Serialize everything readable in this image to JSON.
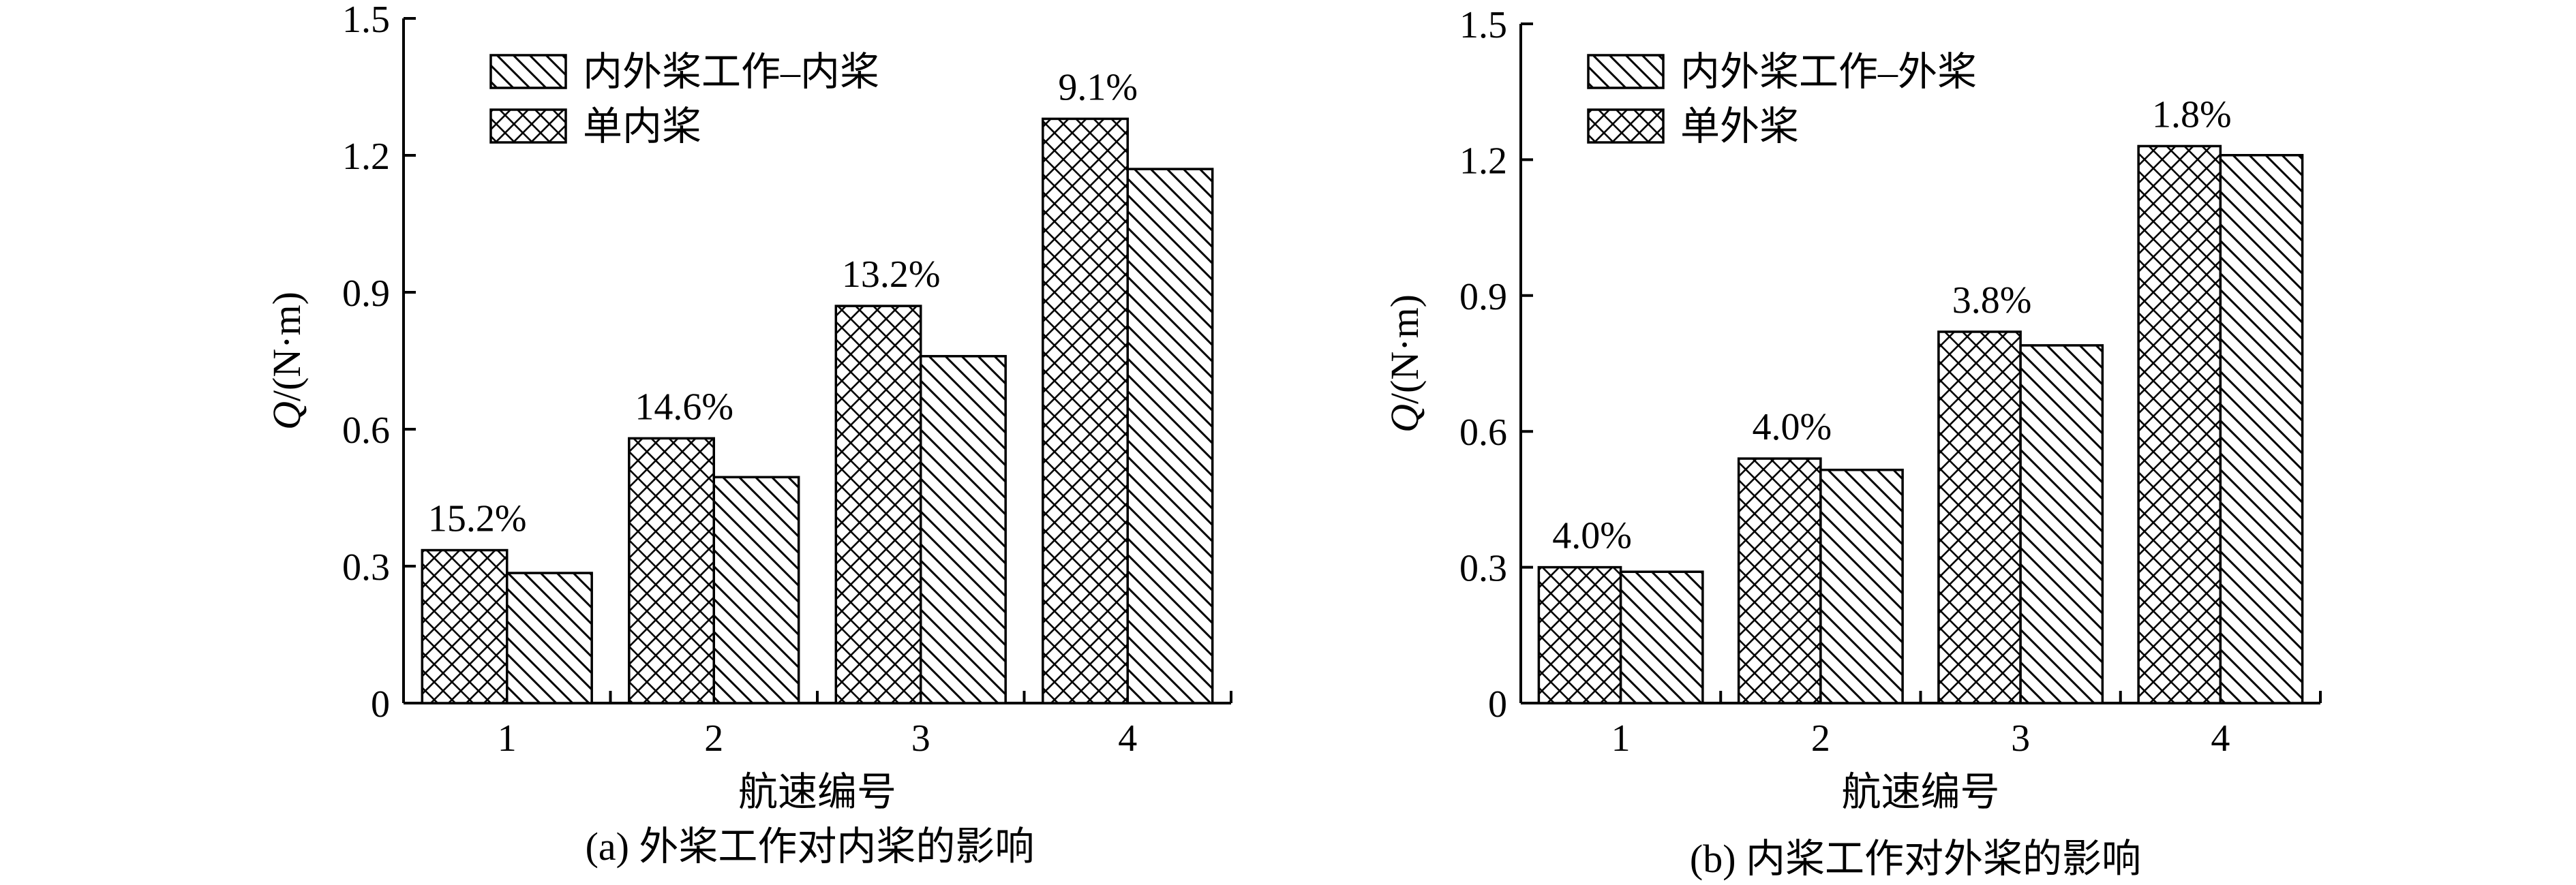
{
  "chart_data": [
    {
      "type": "bar",
      "caption": "(a) 外桨工作对内桨的影响",
      "xlabel": "航速编号",
      "ylabel_italic": "Q",
      "ylabel_unit": "/(N·m)",
      "categories": [
        "1",
        "2",
        "3",
        "4"
      ],
      "ylim": [
        0,
        1.5
      ],
      "yticks": [
        0,
        0.3,
        0.6,
        0.9,
        1.2,
        1.5
      ],
      "ytick_labels": [
        "0",
        "0.3",
        "0.6",
        "0.9",
        "1.2",
        "1.5"
      ],
      "legend_position": "top-left",
      "series": [
        {
          "name": "单内桨",
          "values": [
            0.335,
            0.58,
            0.87,
            1.28
          ],
          "pattern": "crosshatch"
        },
        {
          "name": "内外桨工作–内桨",
          "values": [
            0.285,
            0.495,
            0.76,
            1.17
          ],
          "pattern": "diagonal"
        }
      ],
      "legend_order": [
        1,
        0
      ],
      "annotations": [
        "15.2%",
        "14.6%",
        "13.2%",
        "9.1%"
      ]
    },
    {
      "type": "bar",
      "caption": "(b) 内桨工作对外桨的影响",
      "xlabel": "航速编号",
      "ylabel_italic": "Q",
      "ylabel_unit": "/(N·m)",
      "categories": [
        "1",
        "2",
        "3",
        "4"
      ],
      "ylim": [
        0,
        1.5
      ],
      "yticks": [
        0,
        0.3,
        0.6,
        0.9,
        1.2,
        1.5
      ],
      "ytick_labels": [
        "0",
        "0.3",
        "0.6",
        "0.9",
        "1.2",
        "1.5"
      ],
      "legend_position": "top-left",
      "series": [
        {
          "name": "单外桨",
          "values": [
            0.3,
            0.54,
            0.82,
            1.23
          ],
          "pattern": "crosshatch"
        },
        {
          "name": "内外桨工作–外桨",
          "values": [
            0.29,
            0.515,
            0.79,
            1.21
          ],
          "pattern": "diagonal"
        }
      ],
      "legend_order": [
        1,
        0
      ],
      "annotations": [
        "4.0%",
        "4.0%",
        "3.8%",
        "1.8%"
      ]
    }
  ]
}
